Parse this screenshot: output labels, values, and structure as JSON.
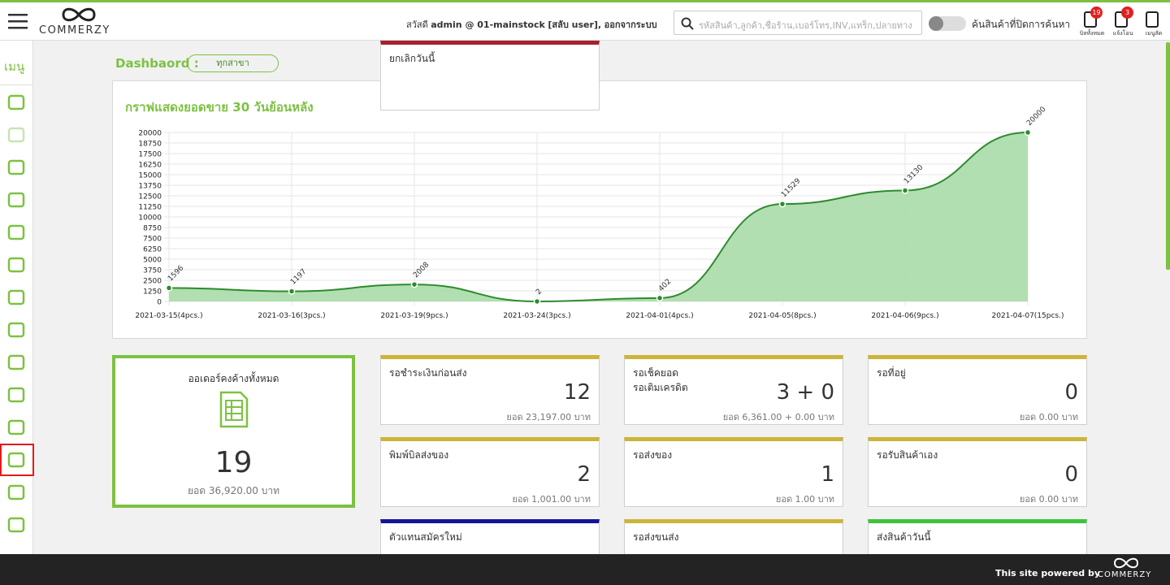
{
  "header": {
    "logo": "COMMERZY",
    "greeting": "สวัสดี",
    "user": "admin @ 01-mainstock",
    "bracket": "[",
    "switch_user": "สลับ user],",
    "logout": "ออกจากระบบ",
    "search_placeholder": "รหัสสินค้า,ลูกค้า,ชื่อร้าน,เบอร์โทร,INV,แทร็ก,ปลายทาง",
    "toggle_label": "ค้นสินค้าที่ปิดการค้นหา",
    "icons": [
      {
        "label": "บิลทั้งหมด",
        "badge": 19
      },
      {
        "label": "แจ้งโอน",
        "badge": 3
      },
      {
        "label": "เมนูลัด"
      }
    ]
  },
  "sidebar": {
    "title": "เมนู"
  },
  "dashboard": {
    "label": "Dashbaord :",
    "branch": "ทุกสาขา"
  },
  "chart_data": {
    "type": "line",
    "title": "กราฟแสดงยอดขาย 30 วันย้อนหลัง",
    "categories": [
      "2021-03-15(4pcs.)",
      "2021-03-16(3pcs.)",
      "2021-03-19(9pcs.)",
      "2021-03-24(3pcs.)",
      "2021-04-01(4pcs.)",
      "2021-04-05(8pcs.)",
      "2021-04-06(9pcs.)",
      "2021-04-07(15pcs.)"
    ],
    "series": [
      {
        "color": "#2e8b2e",
        "values": [
          1596,
          1197,
          2008,
          2,
          402,
          11529,
          13130,
          20000
        ]
      }
    ],
    "ylim": [
      0,
      20000
    ],
    "yticks": [
      0,
      1250,
      2500,
      3750,
      5000,
      6250,
      7500,
      8750,
      10000,
      11250,
      12500,
      13750,
      15000,
      16250,
      17500,
      18750,
      20000
    ],
    "grid": true,
    "area_color": "#a8dca8"
  },
  "summary": {
    "title": "ออเดอร์คงค้างทั้งหมด",
    "value": 19,
    "amount": "ยอด 36,920.00 บาท"
  },
  "cards": [
    {
      "title": "รอชำระเงินก่อนส่ง",
      "value": 12,
      "amount": "ยอด 23,197.00 บาท",
      "color": "#cdb43a"
    },
    {
      "title": "รอเช็คยอด",
      "subtitle": "รอเติมเครดิต",
      "value": "3 + 0",
      "amount": "ยอด 6,361.00 + 0.00 บาท",
      "color": "#cdb43a"
    },
    {
      "title": "รอที่อยู่",
      "value": 0,
      "amount": "ยอด 0.00 บาท",
      "color": "#cdb43a"
    },
    {
      "title": "พิมพ์บิลส่งของ",
      "value": 2,
      "amount": "ยอด 1,001.00 บาท",
      "color": "#cdb43a"
    },
    {
      "title": "รอส่งของ",
      "value": 1,
      "amount": "ยอด 1.00 บาท",
      "color": "#cdb43a"
    },
    {
      "title": "รอรับสินค้าเอง",
      "value": 0,
      "amount": "ยอด 0.00 บาท",
      "color": "#cdb43a"
    },
    {
      "title": "ตัวแทนสมัครใหม่",
      "color": "#14149a"
    },
    {
      "title": "รอส่งขนส่ง",
      "color": "#cdb43a"
    },
    {
      "title": "ส่งสินค้าวันนี้",
      "color": "#3cc43c"
    },
    {
      "title": "ยกเลิกวันนี้",
      "color": "#a8202c"
    }
  ],
  "footer": {
    "text": "This site powered by",
    "logo": "COMMERZY"
  }
}
